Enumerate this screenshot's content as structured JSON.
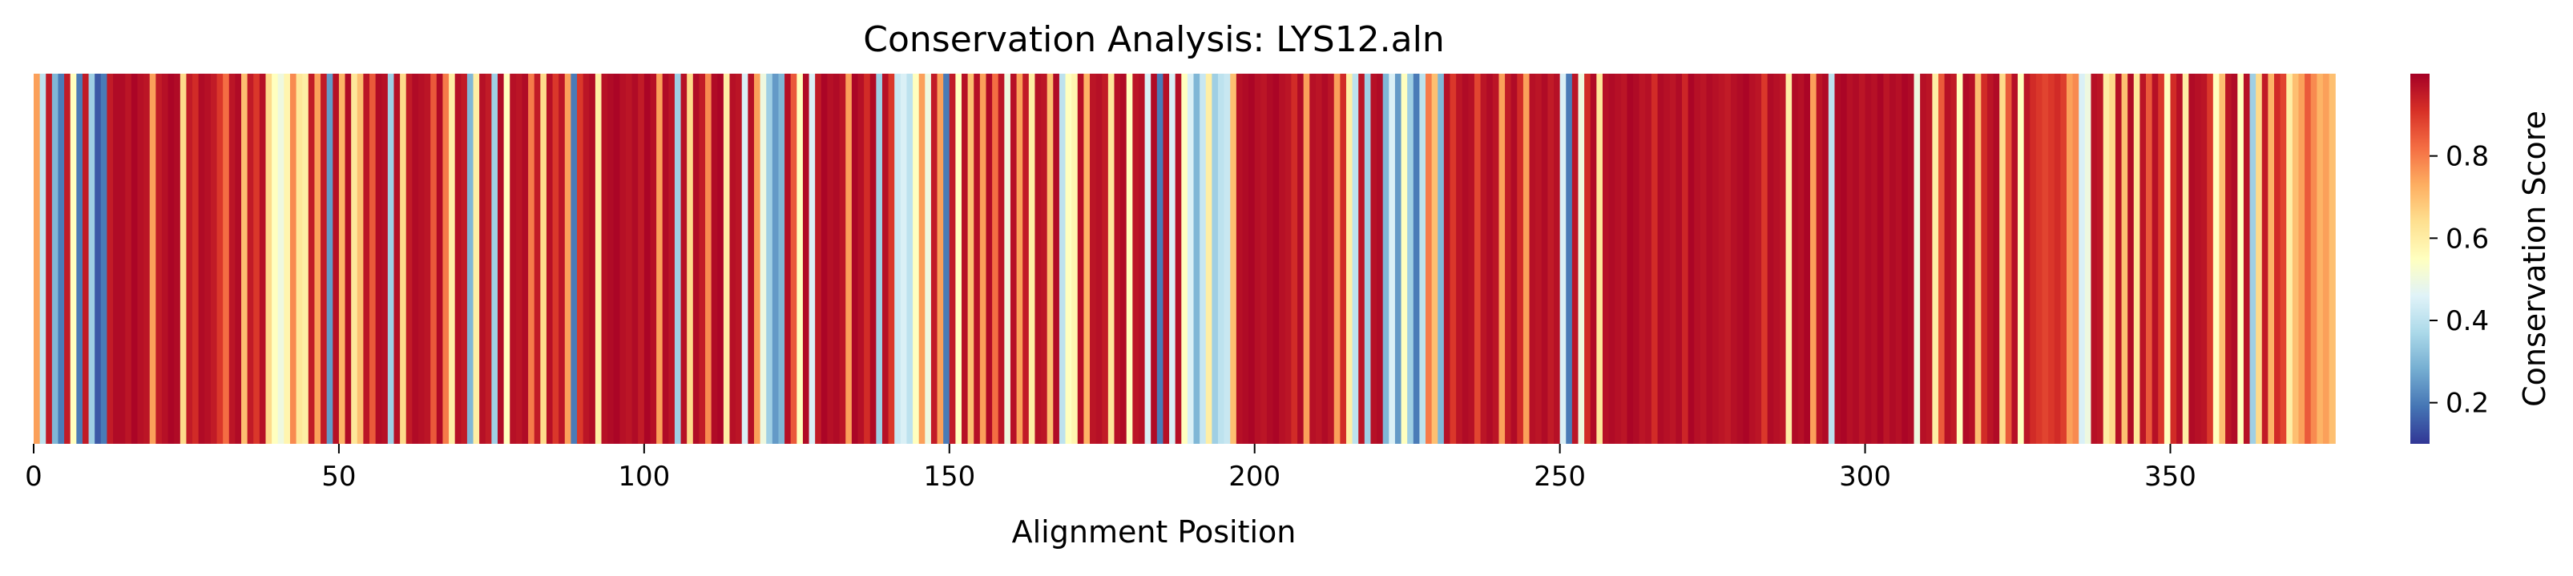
{
  "chart_data": {
    "type": "heatmap",
    "title": "Conservation Analysis: LYS12.aln",
    "xlabel": "Alignment Position",
    "ylabel": "",
    "xlim": [
      0,
      367
    ],
    "x_ticks": [
      0,
      50,
      100,
      150,
      200,
      250,
      300,
      350
    ],
    "colormap": "RdYlBu_r",
    "colorbar": {
      "label": "Conservation Score",
      "range": [
        0.1,
        1.0
      ],
      "ticks": [
        0.2,
        0.4,
        0.6,
        0.8
      ]
    },
    "values": [
      0.75,
      0.4,
      0.95,
      0.3,
      0.2,
      0.95,
      0.55,
      0.2,
      0.95,
      0.35,
      0.15,
      0.2,
      0.95,
      0.98,
      0.98,
      0.96,
      0.99,
      0.97,
      0.96,
      0.75,
      0.95,
      0.97,
      0.99,
      0.98,
      0.65,
      0.95,
      0.92,
      0.98,
      0.97,
      0.95,
      0.9,
      0.82,
      0.96,
      0.98,
      0.7,
      0.95,
      0.9,
      0.97,
      0.65,
      0.55,
      0.5,
      0.58,
      0.78,
      0.62,
      0.6,
      0.95,
      0.75,
      0.95,
      0.25,
      0.97,
      0.72,
      0.98,
      0.62,
      0.7,
      0.96,
      0.85,
      0.98,
      0.97,
      0.35,
      0.97,
      0.65,
      0.95,
      0.98,
      0.97,
      0.96,
      0.85,
      0.98,
      0.8,
      0.6,
      0.97,
      0.95,
      0.3,
      0.6,
      0.97,
      0.95,
      0.35,
      0.98,
      0.55,
      0.97,
      0.96,
      0.98,
      0.8,
      0.95,
      0.65,
      0.97,
      0.9,
      0.96,
      0.75,
      0.2,
      0.9,
      0.96,
      0.98,
      0.6,
      0.97,
      0.98,
      0.99,
      0.97,
      0.96,
      0.98,
      0.95,
      0.99,
      0.97,
      0.75,
      0.98,
      0.96,
      0.35,
      0.97,
      0.65,
      0.98,
      0.95,
      0.78,
      0.98,
      0.99,
      0.6,
      0.97,
      0.96,
      0.45,
      0.97,
      0.75,
      0.5,
      0.35,
      0.25,
      0.3,
      0.97,
      0.85,
      0.55,
      0.98,
      0.45,
      0.95,
      0.99,
      0.97,
      0.98,
      0.96,
      0.75,
      0.99,
      0.97,
      0.92,
      0.98,
      0.35,
      0.97,
      0.9,
      0.42,
      0.45,
      0.4,
      0.55,
      0.75,
      0.5,
      0.95,
      0.75,
      0.2,
      0.95,
      0.55,
      0.97,
      0.7,
      0.97,
      0.75,
      0.98,
      0.82,
      0.96,
      0.5,
      0.97,
      0.75,
      0.95,
      0.6,
      0.97,
      0.96,
      0.7,
      0.98,
      0.4,
      0.55,
      0.58,
      0.97,
      0.72,
      0.96,
      0.97,
      0.95,
      0.62,
      0.97,
      0.98,
      0.55,
      0.96,
      0.97,
      0.45,
      0.98,
      0.2,
      0.97,
      0.45,
      0.97,
      0.55,
      0.45,
      0.3,
      0.42,
      0.6,
      0.35,
      0.4,
      0.42,
      0.7,
      0.97,
      0.98,
      0.99,
      0.97,
      0.96,
      0.98,
      0.99,
      0.97,
      0.96,
      0.92,
      0.98,
      0.75,
      0.97,
      0.96,
      0.98,
      0.96,
      0.75,
      0.92,
      0.6,
      0.4,
      0.96,
      0.35,
      0.97,
      0.98,
      0.3,
      0.45,
      0.25,
      0.55,
      0.35,
      0.2,
      0.4,
      0.8,
      0.7,
      0.3,
      0.97,
      0.9,
      0.96,
      0.98,
      0.97,
      0.88,
      0.96,
      0.98,
      0.96,
      0.75,
      0.95,
      0.98,
      0.92,
      0.75,
      0.97,
      0.96,
      0.98,
      0.95,
      0.97,
      0.45,
      0.2,
      0.96,
      0.5,
      0.92,
      0.98,
      0.62,
      0.97,
      0.98,
      0.97,
      0.96,
      0.99,
      0.98,
      0.96,
      0.97,
      0.92,
      0.98,
      0.97,
      0.96,
      0.98,
      0.93,
      0.99,
      0.97,
      0.96,
      0.98,
      0.97,
      0.96,
      0.95,
      0.97,
      0.98,
      0.99,
      0.97,
      0.96,
      0.9,
      0.98,
      0.97,
      0.96,
      0.6,
      0.98,
      0.97,
      0.99,
      0.75,
      0.96,
      0.98,
      0.4,
      0.98,
      0.99,
      0.97,
      0.98,
      0.96,
      0.98,
      0.97,
      0.99,
      0.96,
      0.98,
      0.97,
      0.99,
      0.98,
      0.5,
      0.97,
      0.96,
      0.6,
      0.85,
      0.97,
      0.95,
      0.55,
      0.98,
      0.97,
      0.7,
      0.92,
      0.96,
      0.98,
      0.65,
      0.85,
      0.97,
      0.55,
      0.96,
      0.92,
      0.9,
      0.88,
      0.9,
      0.92,
      0.89,
      0.75,
      0.78,
      0.45,
      0.5,
      0.97,
      0.96,
      0.6,
      0.65,
      0.97,
      0.7,
      0.98,
      0.62,
      0.96,
      0.85,
      0.97,
      0.9,
      0.55,
      0.92,
      0.97,
      0.6,
      0.98,
      0.97,
      0.96,
      0.9,
      0.55,
      0.7,
      0.96,
      0.98,
      0.55,
      0.97,
      0.35,
      0.65,
      0.95,
      0.72,
      0.92,
      0.88,
      0.6,
      0.7,
      0.75,
      0.85,
      0.78,
      0.72,
      0.75,
      0.7
    ]
  }
}
